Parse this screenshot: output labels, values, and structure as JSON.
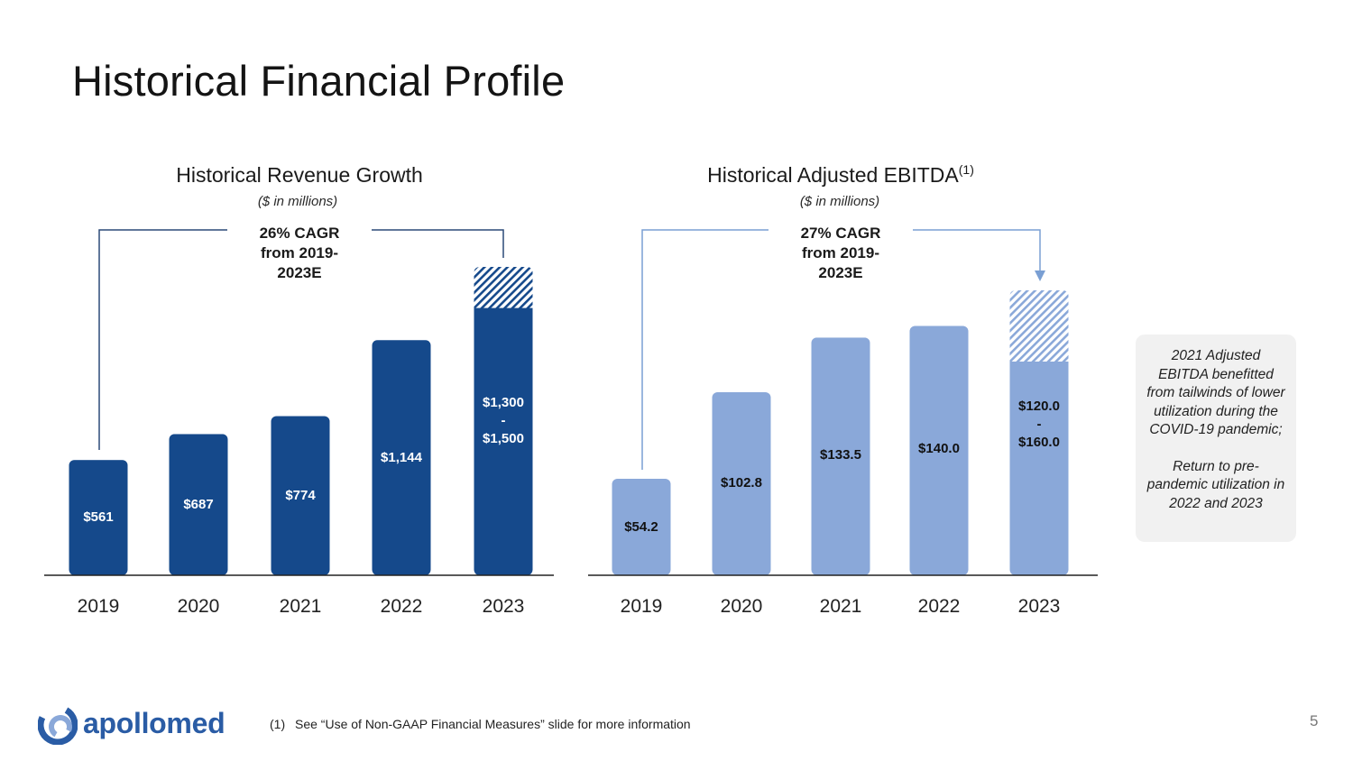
{
  "slide": {
    "title": "Historical Financial Profile",
    "page_number": "5"
  },
  "colors": {
    "revenue_bar": "#15498b",
    "ebitda_bar": "#8aa8d9",
    "axis": "#222222",
    "revenue_connector": "#2c4a78",
    "ebitda_connector": "#7a9fd3"
  },
  "chart_data": [
    {
      "type": "bar",
      "title": "Historical Revenue Growth",
      "title_superscript": "",
      "subtitle": "($ in millions)",
      "annotation": [
        "26% CAGR",
        "from 2019-",
        "2023E"
      ],
      "categories": [
        "2019",
        "2020",
        "2021",
        "2022",
        "2023"
      ],
      "values": [
        561,
        687,
        774,
        1144,
        1300
      ],
      "range_high": [
        null,
        null,
        null,
        null,
        1500
      ],
      "data_labels": [
        [
          "$561"
        ],
        [
          "$687"
        ],
        [
          "$774"
        ],
        [
          "$1,144"
        ],
        [
          "$1,300",
          "-",
          "$1,500"
        ]
      ],
      "ylim": [
        0,
        1500
      ],
      "grid": false,
      "label_color": "#ffffff"
    },
    {
      "type": "bar",
      "title": "Historical Adjusted EBITDA",
      "title_superscript": "(1)",
      "subtitle": "($ in millions)",
      "annotation": [
        "27% CAGR",
        "from 2019-",
        "2023E"
      ],
      "categories": [
        "2019",
        "2020",
        "2021",
        "2022",
        "2023"
      ],
      "values": [
        54.2,
        102.8,
        133.5,
        140.0,
        120.0
      ],
      "range_high": [
        null,
        null,
        null,
        null,
        160.0
      ],
      "data_labels": [
        [
          "$54.2"
        ],
        [
          "$102.8"
        ],
        [
          "$133.5"
        ],
        [
          "$140.0"
        ],
        [
          "$120.0",
          "-",
          "$160.0"
        ]
      ],
      "ylim": [
        0,
        160
      ],
      "grid": false,
      "label_color": "#111111"
    }
  ],
  "note": {
    "paragraph1": "2021 Adjusted EBITDA benefitted from tailwinds of lower utilization during the COVID-19 pandemic;",
    "paragraph2": "Return to pre-pandemic utilization in 2022 and 2023"
  },
  "footer": {
    "logo_text": "apollomed",
    "footnote_marker": "(1)",
    "footnote_text": "See “Use of Non-GAAP Financial Measures” slide for more information"
  }
}
